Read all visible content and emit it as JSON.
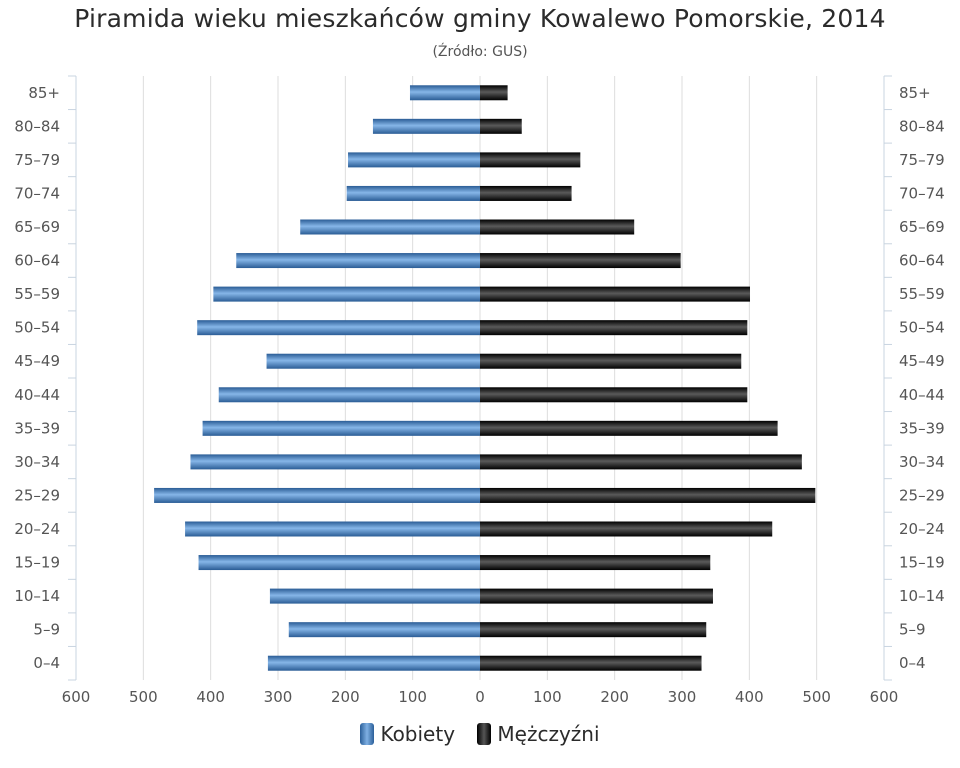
{
  "chart_data": {
    "type": "bar",
    "orientation": "horizontal-population-pyramid",
    "title": "Piramida wieku mieszkańców gminy Kowalewo Pomorskie, 2014",
    "subtitle": "(Źródło: GUS)",
    "categories": [
      "0–4",
      "5–9",
      "10–14",
      "15–19",
      "20–24",
      "25–29",
      "30–34",
      "35–39",
      "40–44",
      "45–49",
      "50–54",
      "55–59",
      "60–64",
      "65–69",
      "70–74",
      "75–79",
      "80–84",
      "85+"
    ],
    "series": [
      {
        "name": "Kobiety",
        "side": "left",
        "color": "#3a78c3",
        "values": [
          315,
          284,
          312,
          418,
          438,
          484,
          430,
          412,
          388,
          317,
          420,
          396,
          362,
          267,
          198,
          196,
          159,
          104
        ]
      },
      {
        "name": "Mężczyźni",
        "side": "right",
        "color": "#111111",
        "values": [
          329,
          336,
          346,
          342,
          434,
          498,
          478,
          442,
          397,
          388,
          397,
          401,
          298,
          229,
          136,
          149,
          62,
          41
        ]
      }
    ],
    "xticks": [
      "600",
      "500",
      "400",
      "300",
      "200",
      "100",
      "0",
      "100",
      "200",
      "300",
      "400",
      "500",
      "600"
    ],
    "xlim": [
      -600,
      600
    ],
    "grid": true,
    "legend_position": "bottom-center"
  }
}
